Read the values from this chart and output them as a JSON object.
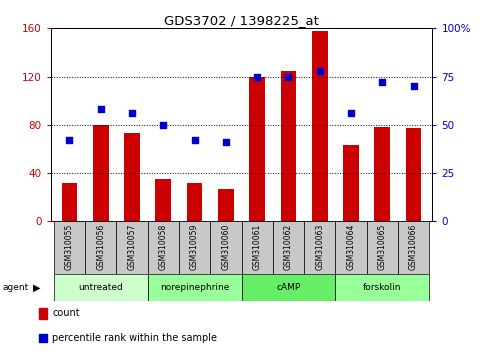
{
  "title": "GDS3702 / 1398225_at",
  "samples": [
    "GSM310055",
    "GSM310056",
    "GSM310057",
    "GSM310058",
    "GSM310059",
    "GSM310060",
    "GSM310061",
    "GSM310062",
    "GSM310063",
    "GSM310064",
    "GSM310065",
    "GSM310066"
  ],
  "counts": [
    32,
    80,
    73,
    35,
    32,
    27,
    120,
    125,
    158,
    63,
    78,
    77
  ],
  "percentiles": [
    42,
    58,
    56,
    50,
    42,
    41,
    75,
    75,
    78,
    56,
    72,
    70
  ],
  "agents": [
    {
      "label": "untreated",
      "start": 0,
      "end": 3,
      "color": "#ccffcc"
    },
    {
      "label": "norepinephrine",
      "start": 3,
      "end": 6,
      "color": "#99ff99"
    },
    {
      "label": "cAMP",
      "start": 6,
      "end": 9,
      "color": "#66ee66"
    },
    {
      "label": "forskolin",
      "start": 9,
      "end": 12,
      "color": "#99ff99"
    }
  ],
  "left_ylim": [
    0,
    160
  ],
  "left_yticks": [
    0,
    40,
    80,
    120,
    160
  ],
  "right_ylim": [
    0,
    100
  ],
  "right_yticks": [
    0,
    25,
    50,
    75,
    100
  ],
  "right_yticklabels": [
    "0",
    "25",
    "50",
    "75",
    "100%"
  ],
  "bar_color": "#cc0000",
  "dot_color": "#0000cc",
  "bar_width": 0.5,
  "left_tick_color": "#cc0000",
  "right_tick_color": "#0000cc",
  "grid_color": "black",
  "agent_label": "agent",
  "legend_count_label": "count",
  "legend_pct_label": "percentile rank within the sample",
  "fig_width": 4.83,
  "fig_height": 3.54,
  "dpi": 100
}
